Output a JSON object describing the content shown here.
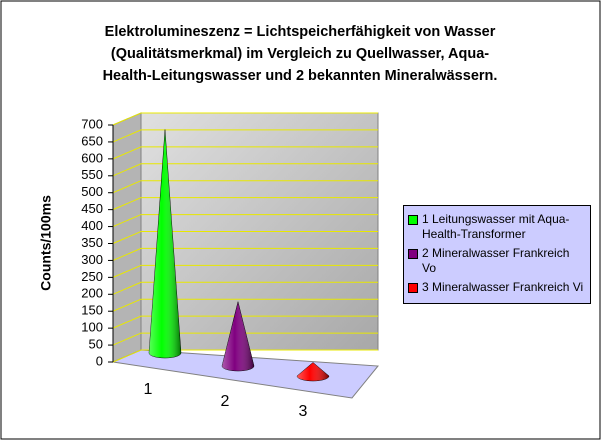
{
  "chart_data": {
    "type": "cone3d",
    "title": [
      "Elektrolumineszenz = Lichtspeicherfähigkeit von Wasser",
      "(Qualitätsmerkmal) im Vergleich zu Quellwasser, Aqua-",
      "Health-Leitungswasser und 2 bekannten Mineralwässern."
    ],
    "y_label": "Counts/100ms",
    "categories": [
      "1",
      "2",
      "3"
    ],
    "series": [
      {
        "name": "1 Leitungswasser mit Aqua-Health-Transformer",
        "color": "#00ff00",
        "values": [
          660,
          null,
          null
        ]
      },
      {
        "name": "2 Mineralwasser Frankreich Vo",
        "color": "#800080",
        "values": [
          null,
          190,
          null
        ]
      },
      {
        "name": "3 Mineralwasser Frankreich Vi",
        "color": "#ff0000",
        "values": [
          null,
          null,
          40
        ]
      }
    ],
    "ylim": [
      0,
      700
    ],
    "yticks": [
      0,
      50,
      100,
      150,
      200,
      250,
      300,
      350,
      400,
      450,
      500,
      550,
      600,
      650,
      700
    ],
    "grid": true,
    "legend": "right"
  }
}
